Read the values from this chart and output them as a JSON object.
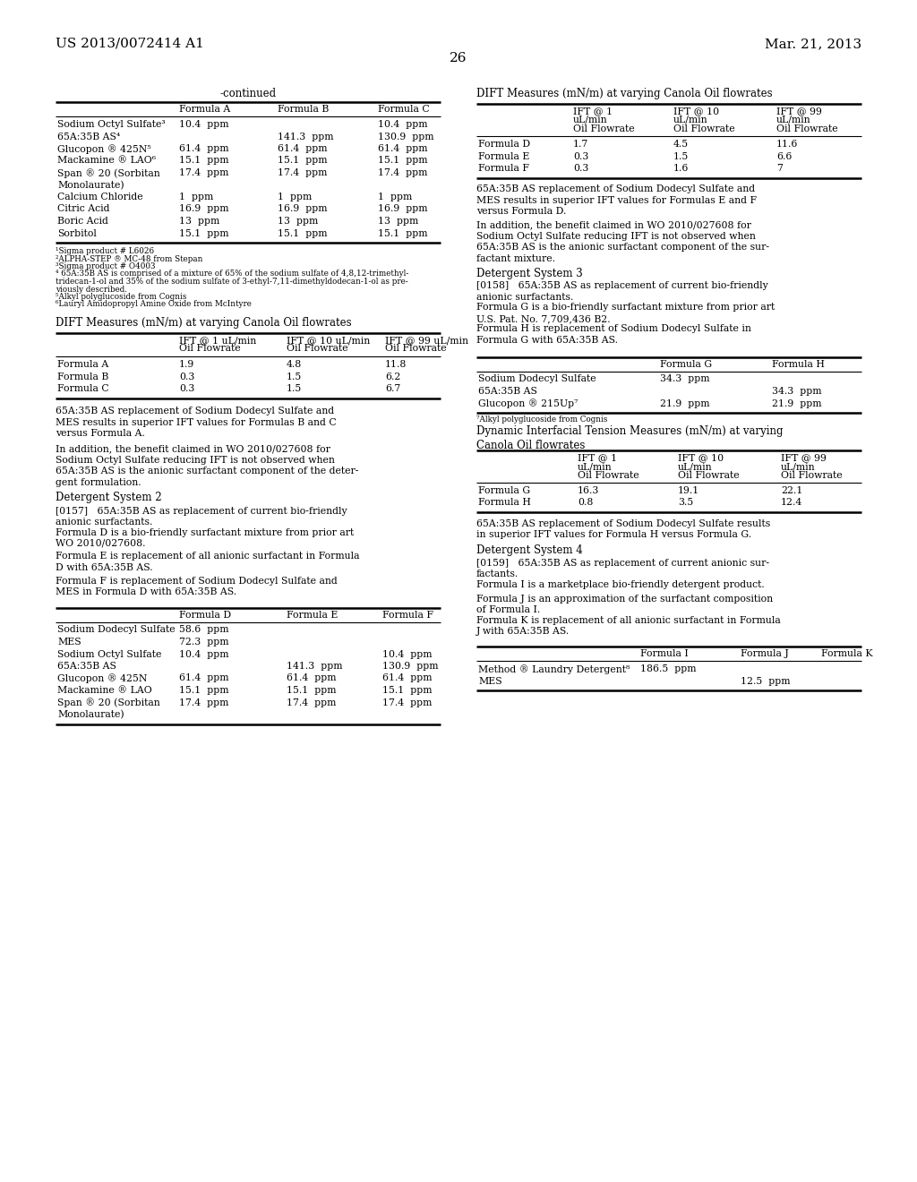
{
  "header_left": "US 2013/0072414 A1",
  "header_right": "Mar. 21, 2013",
  "page_number": "26",
  "table1_title": "-continued",
  "table1_col_headers": [
    "Formula A",
    "Formula B",
    "Formula C"
  ],
  "table1_rows": [
    [
      "Sodium Octyl Sulfate³",
      "10.4  ppm",
      "",
      "10.4  ppm"
    ],
    [
      "65A:35B AS⁴",
      "",
      "141.3  ppm",
      "130.9  ppm"
    ],
    [
      "Glucopon ® 425N⁵",
      "61.4  ppm",
      "61.4  ppm",
      "61.4  ppm"
    ],
    [
      "Mackamine ® LAO⁶",
      "15.1  ppm",
      "15.1  ppm",
      "15.1  ppm"
    ],
    [
      "Span ® 20 (Sorbitan",
      "17.4  ppm",
      "17.4  ppm",
      "17.4  ppm"
    ],
    [
      "Monolaurate)",
      "",
      "",
      ""
    ],
    [
      "Calcium Chloride",
      "1  ppm",
      "1  ppm",
      "1  ppm"
    ],
    [
      "Citric Acid",
      "16.9  ppm",
      "16.9  ppm",
      "16.9  ppm"
    ],
    [
      "Boric Acid",
      "13  ppm",
      "13  ppm",
      "13  ppm"
    ],
    [
      "Sorbitol",
      "15.1  ppm",
      "15.1  ppm",
      "15.1  ppm"
    ]
  ],
  "table1_footnotes": [
    "¹Sigma product # L6026",
    "²ALPHA-STEP ® MC-48 from Stepan",
    "³Sigma product # O4003",
    "⁴ 65A:35B AS is comprised of a mixture of 65% of the sodium sulfate of 4,8,12-trimethyl-",
    "tridecan-1-ol and 35% of the sodium sulfate of 3-ethyl-7,11-dimethyldodecan-1-ol as pre-",
    "viously described.",
    "⁵Alkyl polyglucoside from Cognis",
    "⁶Lauryl Amidopropyl Amine Oxide from McIntyre"
  ],
  "table2_title": "DIFT Measures (mN/m) at varying Canola Oil flowrates",
  "table2_col_headers": [
    "IFT @ 1 uL/min\nOil Flowrate",
    "IFT @ 10 uL/min\nOil Flowrate",
    "IFT @ 99 uL/min\nOil Flowrate"
  ],
  "table2_rows": [
    [
      "Formula A",
      "1.9",
      "4.8",
      "11.8"
    ],
    [
      "Formula B",
      "0.3",
      "1.5",
      "6.2"
    ],
    [
      "Formula C",
      "0.3",
      "1.5",
      "6.7"
    ]
  ],
  "left_texts": [
    "65A:35B AS replacement of Sodium Dodecyl Sulfate and\nMES results in superior IFT values for Formulas B and C\nversus Formula A.",
    "In addition, the benefit claimed in WO 2010/027608 for\nSodium Octyl Sulfate reducing IFT is not observed when\n65A:35B AS is the anionic surfactant component of the deter-\ngent formulation.",
    "Detergent System 2",
    "[0157]   65A:35B AS as replacement of current bio-friendly\nanionic surfactants.",
    "Formula D is a bio-friendly surfactant mixture from prior art\nWO 2010/027608.",
    "Formula E is replacement of all anionic surfactant in Formula\nD with 65A:35B AS.",
    "Formula F is replacement of Sodium Dodecyl Sulfate and\nMES in Formula D with 65A:35B AS."
  ],
  "table3_col_headers": [
    "Formula D",
    "Formula E",
    "Formula F"
  ],
  "table3_rows": [
    [
      "Sodium Dodecyl Sulfate",
      "58.6  ppm",
      "",
      ""
    ],
    [
      "MES",
      "72.3  ppm",
      "",
      ""
    ],
    [
      "Sodium Octyl Sulfate",
      "10.4  ppm",
      "",
      "10.4  ppm"
    ],
    [
      "65A:35B AS",
      "",
      "141.3  ppm",
      "130.9  ppm"
    ],
    [
      "Glucopon ® 425N",
      "61.4  ppm",
      "61.4  ppm",
      "61.4  ppm"
    ],
    [
      "Mackamine ® LAO",
      "15.1  ppm",
      "15.1  ppm",
      "15.1  ppm"
    ],
    [
      "Span ® 20 (Sorbitan",
      "17.4  ppm",
      "17.4  ppm",
      "17.4  ppm"
    ],
    [
      "Monolaurate)",
      "",
      "",
      ""
    ]
  ],
  "right_table4_title": "DIFT Measures (mN/m) at varying Canola Oil flowrates",
  "right_table4_col_headers": [
    "IFT @ 1\nuL/min\nOil Flowrate",
    "IFT @ 10\nuL/min\nOil Flowrate",
    "IFT @ 99\nuL/min\nOil Flowrate"
  ],
  "right_table4_rows": [
    [
      "Formula D",
      "1.7",
      "4.5",
      "11.6"
    ],
    [
      "Formula E",
      "0.3",
      "1.5",
      "6.6"
    ],
    [
      "Formula F",
      "0.3",
      "1.6",
      "7"
    ]
  ],
  "right_texts_1": [
    "65A:35B AS replacement of Sodium Dodecyl Sulfate and\nMES results in superior IFT values for Formulas E and F\nversus Formula D.",
    "In addition, the benefit claimed in WO 2010/027608 for\nSodium Octyl Sulfate reducing IFT is not observed when\n65A:35B AS is the anionic surfactant component of the sur-\nfactant mixture.",
    "Detergent System 3",
    "[0158]   65A:35B AS as replacement of current bio-friendly\nanionic surfactants.",
    "Formula G is a bio-friendly surfactant mixture from prior art\nU.S. Pat. No. 7,709,436 B2.",
    "Formula H is replacement of Sodium Dodecyl Sulfate in\nFormula G with 65A:35B AS."
  ],
  "table5_col_headers": [
    "Formula G",
    "Formula H"
  ],
  "table5_rows": [
    [
      "Sodium Dodecyl Sulfate",
      "34.3  ppm",
      ""
    ],
    [
      "65A:35B AS",
      "",
      "34.3  ppm"
    ],
    [
      "Glucopon ® 215Up⁷",
      "21.9  ppm",
      "21.9  ppm"
    ]
  ],
  "table5_footnote": "⁷Alkyl polyglucoside from Cognis",
  "table6_title": "Dynamic Interfacial Tension Measures (mN/m) at varying\nCanola Oil flowrates",
  "table6_col_headers": [
    "IFT @ 1\nuL/min\nOil Flowrate",
    "IFT @ 10\nuL/min\nOil Flowrate",
    "IFT @ 99\nuL/min\nOil Flowrate"
  ],
  "table6_rows": [
    [
      "Formula G",
      "16.3",
      "19.1",
      "22.1"
    ],
    [
      "Formula H",
      "0.8",
      "3.5",
      "12.4"
    ]
  ],
  "right_texts_2": [
    "65A:35B AS replacement of Sodium Dodecyl Sulfate results\nin superior IFT values for Formula H versus Formula G.",
    "Detergent System 4",
    "[0159]   65A:35B AS as replacement of current anionic sur-\nfactants.",
    "Formula I is a marketplace bio-friendly detergent product.",
    "Formula J is an approximation of the surfactant composition\nof Formula I.",
    "Formula K is replacement of all anionic surfactant in Formula\nJ with 65A:35B AS."
  ],
  "table7_col_headers": [
    "Formula I",
    "Formula J",
    "Formula K"
  ],
  "table7_rows": [
    [
      "Method ® Laundry Detergent⁸",
      "186.5  ppm",
      "",
      ""
    ],
    [
      "MES",
      "",
      "12.5  ppm",
      ""
    ]
  ]
}
